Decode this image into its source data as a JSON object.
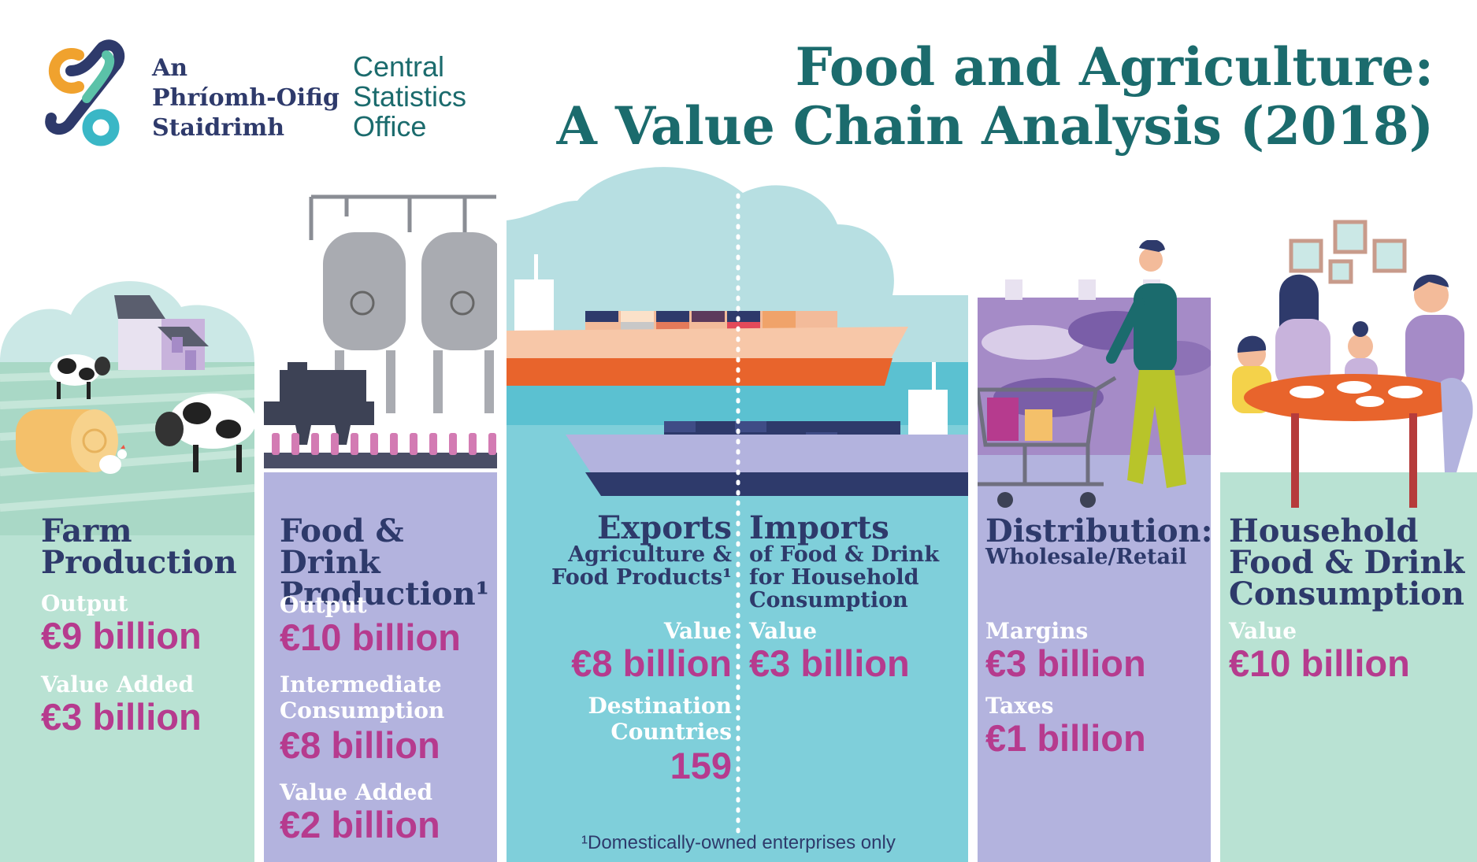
{
  "title": [
    "Food and Agriculture:",
    "A Value Chain Analysis (2018)"
  ],
  "logo": {
    "irish": [
      "An",
      "Phríomh-Oifig",
      "Staidrimh"
    ],
    "english": [
      "Central",
      "Statistics",
      "Office"
    ]
  },
  "farm": {
    "heading": [
      "Farm",
      "Production"
    ],
    "output_label": "Output",
    "output_value": "€9 billion",
    "value_added_label": "Value Added",
    "value_added_value": "€3 billion"
  },
  "food_drink": {
    "heading": [
      "Food & Drink",
      "Production¹"
    ],
    "output_label": "Output",
    "output_value": "€10 billion",
    "intermediate_label": [
      "Intermediate",
      "Consumption"
    ],
    "intermediate_value": "€8 billion",
    "value_added_label": "Value Added",
    "value_added_value": "€2 billion"
  },
  "exports": {
    "heading": "Exports",
    "subheading": [
      "Agriculture &",
      "Food Products¹"
    ],
    "value_label": "Value",
    "value": "€8 billion",
    "destination_label": [
      "Destination",
      "Countries"
    ],
    "destination_value": "159"
  },
  "imports": {
    "heading": "Imports",
    "subheading": [
      "of Food & Drink",
      "for Household",
      "Consumption"
    ],
    "value_label": "Value",
    "value": "€3 billion"
  },
  "distribution": {
    "heading": "Distribution:",
    "subheading": "Wholesale/Retail",
    "margins_label": "Margins",
    "margins_value": "€3 billion",
    "taxes_label": "Taxes",
    "taxes_value": "€1 billion"
  },
  "household": {
    "heading": [
      "Household",
      "Food & Drink",
      "Consumption"
    ],
    "value_label": "Value",
    "value": "€10 billion"
  },
  "footnote": "¹Domestically-owned enterprises only",
  "colors": {
    "farm_bg": "#b9e2d3",
    "food_bg": "#b3b3de",
    "sea_bg": "#7fcfda",
    "dist_bg": "#b3b3de",
    "house_bg": "#b9e2d3",
    "title": "#1b6b6d",
    "navy": "#2e3a6b",
    "magenta": "#b63b8e"
  }
}
